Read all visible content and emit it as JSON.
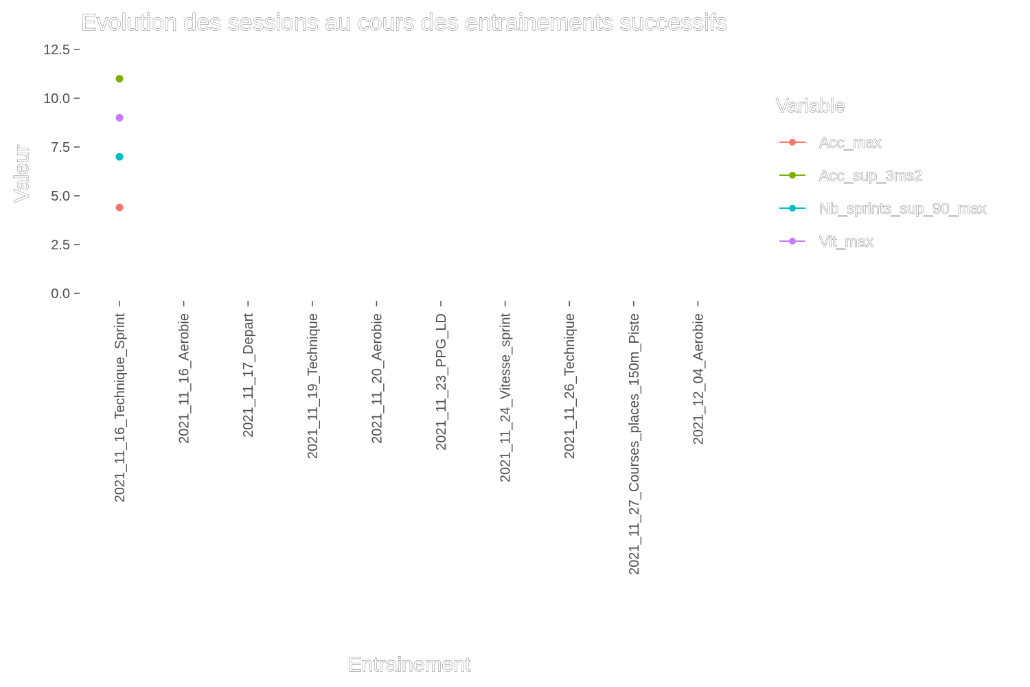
{
  "chart_data": {
    "type": "scatter",
    "title": "Evolution des sessions au cours des entrainements successifs",
    "xlabel": "Entrainement",
    "ylabel": "Valeur",
    "ylim": [
      0,
      12.5
    ],
    "yticks": [
      "0.0",
      "2.5",
      "5.0",
      "7.5",
      "10.0",
      "12.5"
    ],
    "categories": [
      "2021_11_16_Technique_Sprint",
      "2021_11_16_Aerobie",
      "2021_11_17_Depart",
      "2021_11_19_Technique",
      "2021_11_20_Aerobie",
      "2021_11_23_PPG_LD",
      "2021_11_24_Vitesse_sprint",
      "2021_11_26_Technique",
      "2021_11_27_Courses_places_150m_Piste",
      "2021_12_04_Aerobie"
    ],
    "legend_title": "Variable",
    "legend_position": "right",
    "grid": false,
    "series": [
      {
        "name": "Acc_max",
        "color": "#F8766D",
        "values": [
          4.4,
          null,
          null,
          null,
          null,
          null,
          null,
          null,
          null,
          null
        ]
      },
      {
        "name": "Acc_sup_3ms2",
        "color": "#7CAE00",
        "values": [
          11.0,
          null,
          null,
          null,
          null,
          null,
          null,
          null,
          null,
          null
        ]
      },
      {
        "name": "Nb_sprints_sup_90_max",
        "color": "#00BFC4",
        "values": [
          7.0,
          null,
          null,
          null,
          null,
          null,
          null,
          null,
          null,
          null
        ]
      },
      {
        "name": "Vit_max",
        "color": "#C77CFF",
        "values": [
          9.0,
          null,
          null,
          null,
          null,
          null,
          null,
          null,
          null,
          null
        ]
      }
    ]
  }
}
